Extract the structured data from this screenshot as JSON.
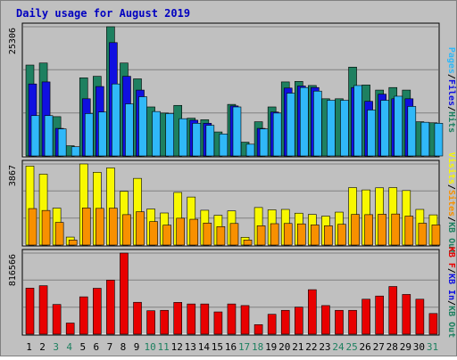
{
  "chart_data": {
    "type": "bar",
    "title": "Daily usage for August 2019",
    "categories": [
      "1",
      "2",
      "3",
      "4",
      "5",
      "6",
      "7",
      "8",
      "9",
      "10",
      "11",
      "12",
      "13",
      "14",
      "15",
      "16",
      "17",
      "18",
      "19",
      "20",
      "21",
      "22",
      "23",
      "24",
      "25",
      "26",
      "27",
      "28",
      "29",
      "30",
      "31"
    ],
    "weekend_days": [
      "3",
      "4",
      "10",
      "11",
      "17",
      "18",
      "24",
      "25",
      "31"
    ],
    "panels": [
      {
        "id": "hits-panel",
        "y_max_label": "25306",
        "ylim": [
          0,
          25306
        ],
        "side_labels": [
          "Pages",
          "/",
          "Files",
          "/",
          "Hits"
        ],
        "series": [
          {
            "name": "Hits",
            "color": "#1e8060",
            "values": [
              17800,
              18200,
              7700,
              2000,
              15300,
              15600,
              25306,
              18200,
              15100,
              9600,
              8400,
              9900,
              7400,
              7100,
              4700,
              10100,
              2700,
              6700,
              9600,
              14500,
              14600,
              13800,
              11200,
              11200,
              17400,
              13900,
              12900,
              13400,
              12900,
              6700,
              6500
            ]
          },
          {
            "name": "Files",
            "color": "#1010e0",
            "values": [
              14100,
              14500,
              5400,
              0,
              11200,
              13600,
              22200,
              15600,
              12900,
              0,
              0,
              0,
              7000,
              6400,
              0,
              9800,
              0,
              5400,
              8600,
              13300,
              13700,
              13400,
              0,
              0,
              13400,
              10700,
              12100,
              11200,
              11200,
              0,
              0
            ]
          },
          {
            "name": "Pages",
            "color": "#30b8f8",
            "values": [
              7900,
              7900,
              5300,
              1800,
              8300,
              8600,
              14100,
              10200,
              11600,
              8700,
              8300,
              7300,
              6400,
              6000,
              4300,
              9600,
              2300,
              5300,
              8400,
              12300,
              13400,
              12700,
              10900,
              10900,
              13800,
              9000,
              10900,
              11700,
              9700,
              6600,
              6400
            ]
          }
        ]
      },
      {
        "id": "visits-panel",
        "y_max_label": "3867",
        "ylim": [
          0,
          3867
        ],
        "side_labels": [
          "Visits",
          "/",
          "Sites",
          "/",
          "KB Out"
        ],
        "series": [
          {
            "name": "Visits",
            "color": "#f8f800",
            "values": [
              3767,
              3380,
              1760,
              380,
              3867,
              3470,
              3680,
              2560,
              3180,
              1720,
              1530,
              2510,
              2290,
              1660,
              1420,
              1630,
              370,
              1790,
              1680,
              1700,
              1520,
              1460,
              1380,
              1570,
              2740,
              2630,
              2730,
              2740,
              2600,
              1700,
              1440
            ]
          },
          {
            "name": "Sites",
            "color": "#f89000",
            "values": [
              1740,
              1650,
              1080,
              240,
              1770,
              1750,
              1760,
              1450,
              1590,
              1120,
              950,
              1280,
              1230,
              1050,
              880,
              1030,
              240,
              920,
              1020,
              1030,
              1010,
              960,
              920,
              990,
              1460,
              1450,
              1470,
              1480,
              1380,
              1040,
              960
            ]
          }
        ]
      },
      {
        "id": "kbytes-panel",
        "y_max_label": "816566",
        "ylim": [
          0,
          816566
        ],
        "side_labels": [
          "KB F",
          "/",
          "KB In",
          "/",
          "KB Out"
        ],
        "series": [
          {
            "name": "KB F",
            "color": "#e80000",
            "values": [
              464000,
              488000,
              299000,
              112000,
              376000,
              462000,
              544000,
              816566,
              321000,
              236000,
              240000,
              320000,
              304000,
              304000,
              224000,
              304000,
              288000,
              96000,
              200000,
              240000,
              272000,
              448000,
              288000,
              240000,
              240000,
              352000,
              384000,
              480000,
              400000,
              352000,
              208000
            ]
          }
        ]
      }
    ],
    "side_label_colors": {
      "Pages": "#30b8f8",
      "Files": "#1010e0",
      "Hits": "#1e8060",
      "Visits": "#f8f800",
      "Sites": "#f89000",
      "KB F": "#e80000",
      "KB In": "#1010e0",
      "KB Out": "#1e8060",
      "/": "#000000"
    },
    "colors": {
      "background": "#c0c0c0",
      "gridline": "#808080",
      "title": "#0000c0",
      "weekday_label": "#000000",
      "weekend_label": "#1e8060"
    }
  }
}
